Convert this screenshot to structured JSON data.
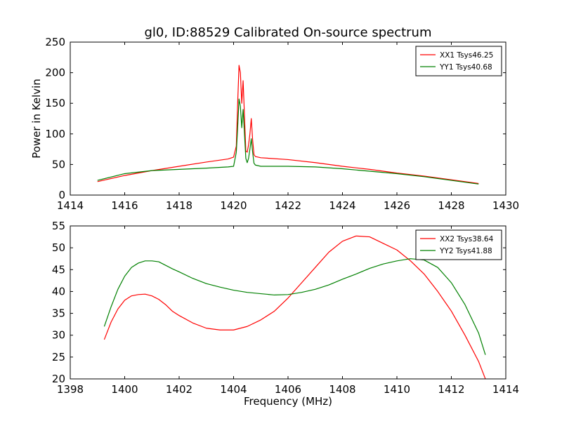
{
  "figure": {
    "title": "gl0, ID:88529 Calibrated On-source spectrum"
  },
  "chart_data": [
    {
      "type": "line",
      "title": "gl0, ID:88529 Calibrated On-source spectrum",
      "xlabel": "",
      "ylabel": "Power in Kelvin",
      "xlim": [
        1414,
        1430
      ],
      "ylim": [
        0,
        250
      ],
      "xticks": [
        "1414",
        "1416",
        "1418",
        "1420",
        "1422",
        "1424",
        "1426",
        "1428",
        "1430"
      ],
      "yticks": [
        "0",
        "50",
        "100",
        "150",
        "200",
        "250"
      ],
      "grid": false,
      "legend": "top-right",
      "series": [
        {
          "name": "XX1 Tsys46.25",
          "color": "#ff0000",
          "x": [
            1415.0,
            1416.0,
            1417.0,
            1418.0,
            1419.0,
            1419.8,
            1420.0,
            1420.1,
            1420.15,
            1420.2,
            1420.25,
            1420.3,
            1420.35,
            1420.4,
            1420.45,
            1420.5,
            1420.55,
            1420.6,
            1420.65,
            1420.7,
            1420.75,
            1420.8,
            1420.9,
            1421.0,
            1422.0,
            1423.0,
            1424.0,
            1425.0,
            1426.0,
            1427.0,
            1428.0,
            1429.0
          ],
          "y": [
            22,
            32,
            40,
            47,
            54,
            59,
            62,
            80,
            150,
            212,
            200,
            150,
            187,
            130,
            72,
            70,
            82,
            100,
            125,
            90,
            66,
            63,
            62,
            61,
            58,
            53,
            47,
            42,
            36,
            31,
            25,
            19
          ]
        },
        {
          "name": "YY1 Tsys40.68",
          "color": "#008000",
          "x": [
            1415.0,
            1416.0,
            1417.0,
            1418.0,
            1419.0,
            1419.8,
            1420.0,
            1420.1,
            1420.15,
            1420.2,
            1420.25,
            1420.3,
            1420.35,
            1420.4,
            1420.45,
            1420.5,
            1420.55,
            1420.6,
            1420.65,
            1420.7,
            1420.75,
            1420.8,
            1420.9,
            1421.0,
            1422.0,
            1423.0,
            1424.0,
            1425.0,
            1426.0,
            1427.0,
            1428.0,
            1429.0
          ],
          "y": [
            24,
            35,
            40,
            42,
            44,
            46,
            47,
            70,
            110,
            157,
            145,
            110,
            140,
            100,
            60,
            53,
            60,
            75,
            92,
            70,
            52,
            49,
            48,
            47,
            47,
            46,
            43,
            39,
            35,
            30,
            24,
            18
          ]
        }
      ]
    },
    {
      "type": "line",
      "title": "",
      "xlabel": "Frequency (MHz)",
      "ylabel": "",
      "xlim": [
        1398,
        1414
      ],
      "ylim": [
        20,
        55
      ],
      "xticks": [
        "1398",
        "1400",
        "1402",
        "1404",
        "1406",
        "1408",
        "1410",
        "1412",
        "1414"
      ],
      "yticks": [
        "20",
        "25",
        "30",
        "35",
        "40",
        "45",
        "50",
        "55"
      ],
      "grid": false,
      "legend": "top-right",
      "series": [
        {
          "name": "XX2 Tsys38.64",
          "color": "#ff0000",
          "x": [
            1399.25,
            1399.5,
            1399.75,
            1400.0,
            1400.25,
            1400.5,
            1400.75,
            1401.0,
            1401.25,
            1401.5,
            1401.75,
            1402.0,
            1402.5,
            1403.0,
            1403.5,
            1404.0,
            1404.5,
            1405.0,
            1405.5,
            1406.0,
            1406.5,
            1407.0,
            1407.5,
            1408.0,
            1408.5,
            1409.0,
            1409.5,
            1410.0,
            1410.5,
            1411.0,
            1411.5,
            1412.0,
            1412.5,
            1413.0,
            1413.25
          ],
          "y": [
            29,
            33,
            36,
            38,
            39,
            39.3,
            39.4,
            39,
            38.2,
            37,
            35.5,
            34.5,
            32.8,
            31.6,
            31.2,
            31.2,
            32,
            33.5,
            35.5,
            38.5,
            42,
            45.5,
            49,
            51.5,
            52.7,
            52.5,
            51,
            49.5,
            47,
            44,
            40,
            35.5,
            30,
            24,
            20
          ]
        },
        {
          "name": "YY2 Tsys41.88",
          "color": "#008000",
          "x": [
            1399.25,
            1399.5,
            1399.75,
            1400.0,
            1400.25,
            1400.5,
            1400.75,
            1401.0,
            1401.25,
            1401.5,
            1401.75,
            1402.0,
            1402.5,
            1403.0,
            1403.5,
            1404.0,
            1404.5,
            1405.0,
            1405.5,
            1406.0,
            1406.5,
            1407.0,
            1407.5,
            1408.0,
            1408.5,
            1409.0,
            1409.5,
            1410.0,
            1410.5,
            1411.0,
            1411.5,
            1412.0,
            1412.5,
            1413.0,
            1413.25
          ],
          "y": [
            32,
            36.5,
            40.5,
            43.5,
            45.5,
            46.5,
            47,
            47,
            46.8,
            46,
            45.2,
            44.5,
            43,
            41.8,
            41,
            40.3,
            39.8,
            39.5,
            39.2,
            39.3,
            39.8,
            40.5,
            41.5,
            42.8,
            44,
            45.3,
            46.3,
            47,
            47.5,
            47.2,
            45.5,
            42,
            37,
            30.5,
            25.5
          ]
        }
      ]
    }
  ]
}
